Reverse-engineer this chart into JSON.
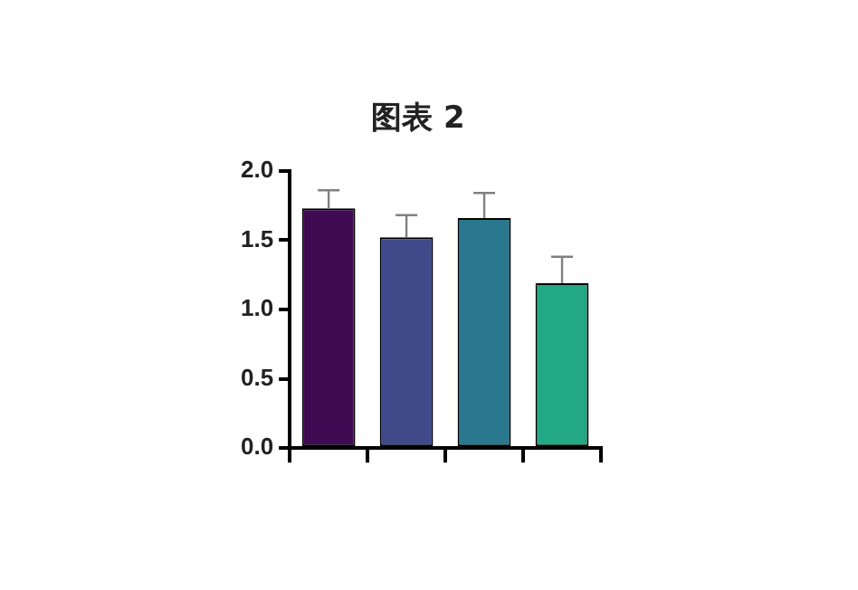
{
  "chart_data": {
    "type": "bar",
    "title": "图表 2",
    "categories": [
      null,
      null,
      null,
      null
    ],
    "values": [
      1.73,
      1.52,
      1.66,
      1.19
    ],
    "colors": [
      "#3f0a52",
      "#404a8a",
      "#2a788e",
      "#22a884"
    ],
    "errors": [
      [
        1.73,
        1.86
      ],
      [
        1.52,
        1.68
      ],
      [
        1.66,
        1.84
      ],
      [
        1.19,
        1.38
      ]
    ],
    "ylim": [
      0,
      2
    ],
    "yticks": [
      {
        "value": 0,
        "label": "0.0"
      },
      0.5,
      {
        "value": 1,
        "label": "1.0"
      },
      1.5,
      {
        "value": 2,
        "label": "2.0"
      }
    ],
    "grid": false,
    "legend": false
  }
}
